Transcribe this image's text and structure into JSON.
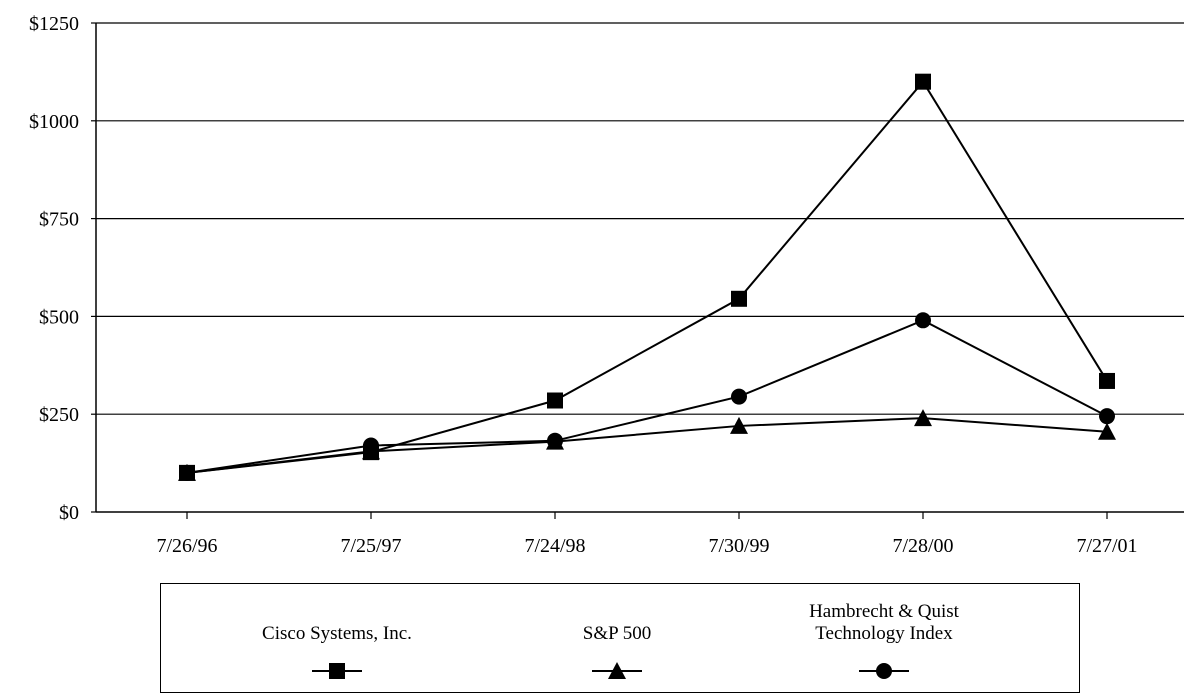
{
  "chart_data": {
    "type": "line",
    "title": "",
    "xlabel": "",
    "ylabel": "",
    "categories": [
      "7/26/96",
      "7/25/97",
      "7/24/98",
      "7/30/99",
      "7/28/00",
      "7/27/01"
    ],
    "ylim": [
      0,
      1250
    ],
    "yticks": [
      "$0",
      "$250",
      "$500",
      "$750",
      "$1000",
      "$1250"
    ],
    "ytick_values": [
      0,
      250,
      500,
      750,
      1000,
      1250
    ],
    "grid": true,
    "legend_position": "bottom",
    "series": [
      {
        "name": "Cisco Systems, Inc.",
        "marker": "square",
        "values": [
          100,
          153,
          285,
          545,
          1100,
          335
        ]
      },
      {
        "name": "S&P 500",
        "marker": "triangle",
        "values": [
          100,
          155,
          180,
          220,
          240,
          205
        ]
      },
      {
        "name": "Hambrecht & Quist\nTechnology Index",
        "marker": "circle",
        "values": [
          100,
          170,
          182,
          295,
          490,
          245
        ]
      }
    ],
    "colors": {
      "line": "#000000",
      "grid": "#000000",
      "background": "#ffffff"
    }
  }
}
